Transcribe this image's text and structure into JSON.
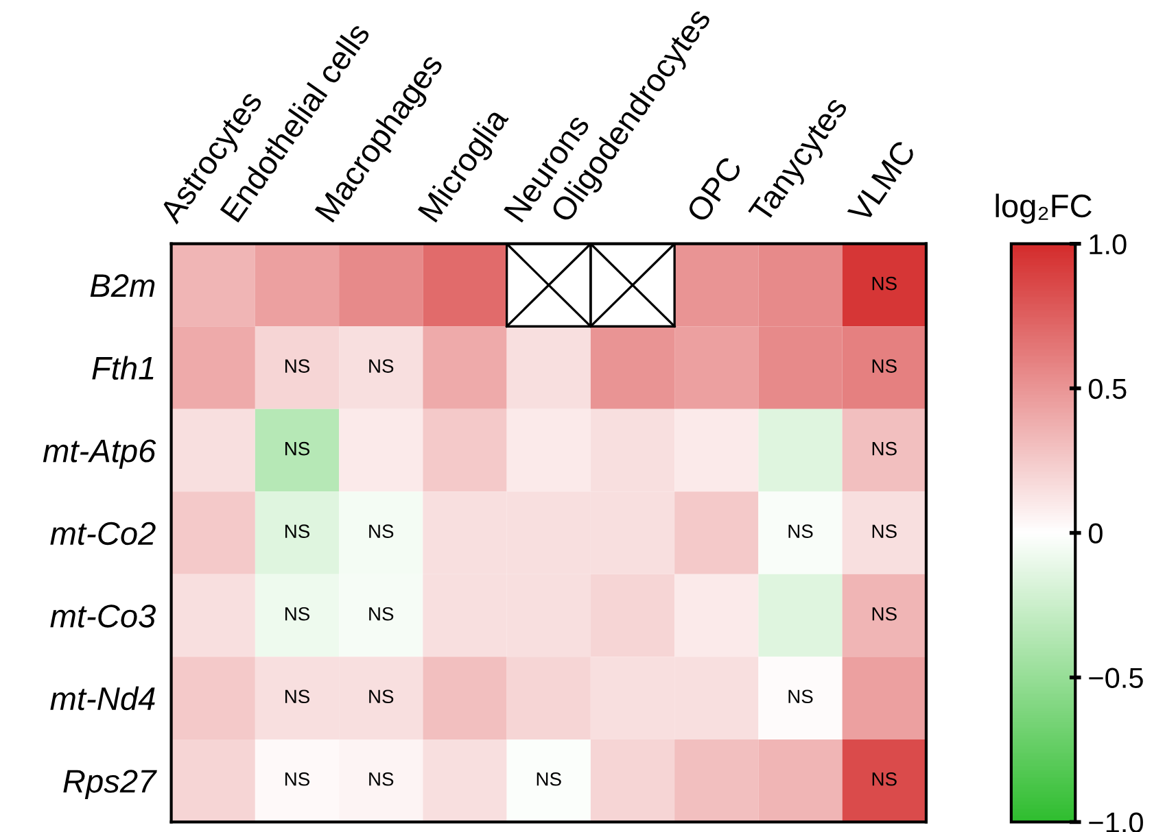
{
  "chart_data": {
    "type": "heatmap",
    "categories": [
      "Astrocytes",
      "Endothelial cells",
      "Macrophages",
      "Microglia",
      "Neurons",
      "Oligodendrocytes",
      "OPC",
      "Tanycytes",
      "VLMC"
    ],
    "y_categories": [
      "B2m",
      "Fth1",
      "mt-Atp6",
      "mt-Co2",
      "mt-Co3",
      "mt-Nd4",
      "Rps27"
    ],
    "cells": [
      [
        0.35,
        0.45,
        0.55,
        0.7,
        null,
        null,
        0.5,
        0.55,
        0.95
      ],
      [
        0.4,
        0.2,
        0.15,
        0.4,
        0.15,
        0.5,
        0.45,
        0.55,
        0.6
      ],
      [
        0.15,
        -0.35,
        0.1,
        0.25,
        0.1,
        0.15,
        0.1,
        -0.15,
        0.3
      ],
      [
        0.25,
        -0.15,
        -0.05,
        0.15,
        0.15,
        0.15,
        0.25,
        -0.03,
        0.15
      ],
      [
        0.15,
        -0.08,
        -0.04,
        0.15,
        0.15,
        0.2,
        0.1,
        -0.15,
        0.35
      ],
      [
        0.25,
        0.15,
        0.15,
        0.3,
        0.2,
        0.15,
        0.15,
        0.02,
        0.45
      ],
      [
        0.2,
        0.03,
        0.05,
        0.15,
        -0.02,
        0.2,
        0.3,
        0.35,
        0.85
      ]
    ],
    "cell_labels": [
      [
        null,
        null,
        null,
        null,
        null,
        null,
        null,
        null,
        "NS"
      ],
      [
        null,
        "NS",
        "NS",
        null,
        null,
        null,
        null,
        null,
        "NS"
      ],
      [
        null,
        "NS",
        null,
        null,
        null,
        null,
        null,
        null,
        "NS"
      ],
      [
        null,
        "NS",
        "NS",
        null,
        null,
        null,
        null,
        "NS",
        "NS"
      ],
      [
        null,
        "NS",
        "NS",
        null,
        null,
        null,
        null,
        null,
        "NS"
      ],
      [
        null,
        "NS",
        "NS",
        null,
        null,
        null,
        null,
        "NS",
        null
      ],
      [
        null,
        "NS",
        "NS",
        null,
        "NS",
        null,
        null,
        null,
        "NS"
      ]
    ],
    "clabel": "log₂FC",
    "clim": [
      -1.0,
      1.0
    ],
    "cticks": [
      {
        "value": -1.0,
        "label": "−1.0"
      },
      {
        "value": -0.5,
        "label": "−0.5"
      },
      0,
      0.5,
      {
        "value": 1.0,
        "label": "1.0"
      }
    ]
  }
}
